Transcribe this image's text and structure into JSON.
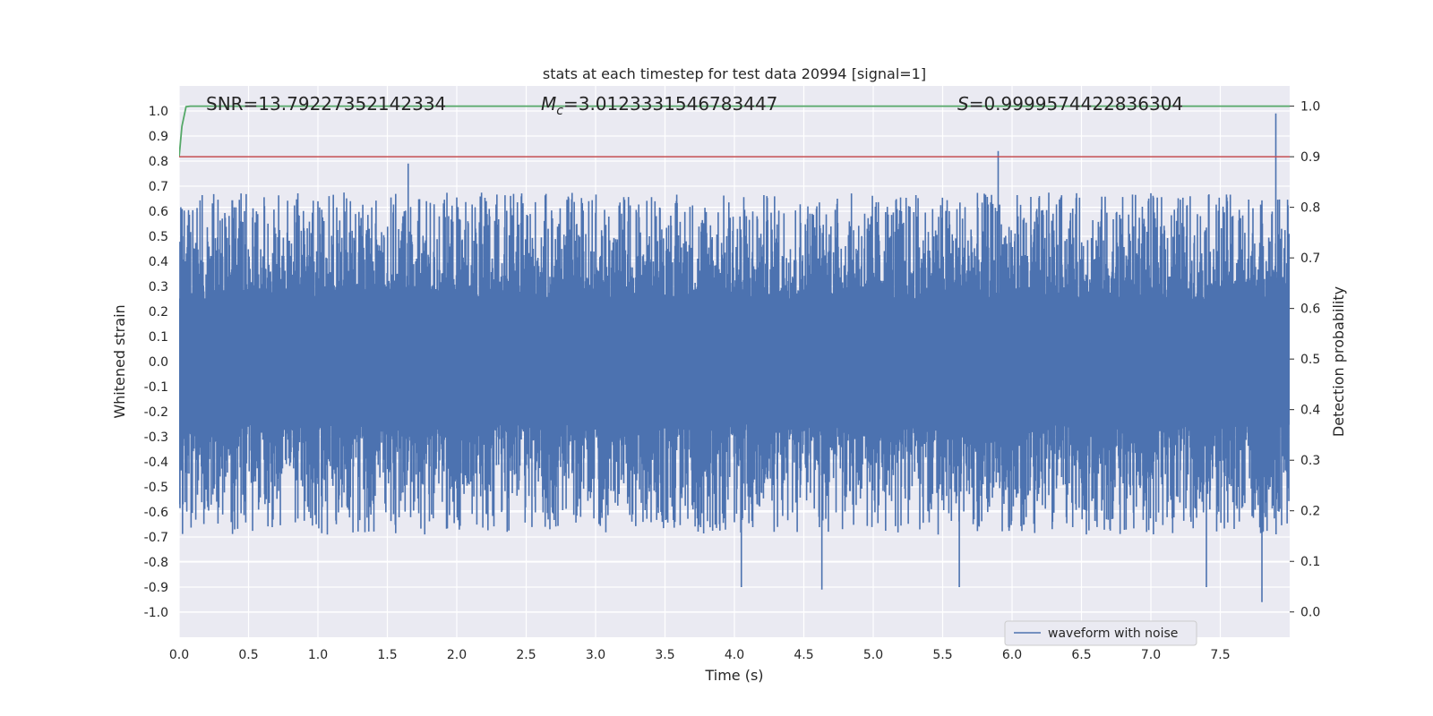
{
  "chart_data": {
    "type": "line",
    "title": "stats at each timestep for test data 20994 [signal=1]",
    "xlabel": "Time (s)",
    "ylabel_left": "Whitened strain",
    "ylabel_right": "Detection probability",
    "xlim": [
      0.0,
      8.0
    ],
    "ylim_left": [
      -1.1,
      1.1
    ],
    "ylim_right": [
      -0.05,
      1.04
    ],
    "xticks": [
      "0.0",
      "0.5",
      "1.0",
      "1.5",
      "2.0",
      "2.5",
      "3.0",
      "3.5",
      "4.0",
      "4.5",
      "5.0",
      "5.5",
      "6.0",
      "6.5",
      "7.0",
      "7.5"
    ],
    "xtick_values": [
      0.0,
      0.5,
      1.0,
      1.5,
      2.0,
      2.5,
      3.0,
      3.5,
      4.0,
      4.5,
      5.0,
      5.5,
      6.0,
      6.5,
      7.0,
      7.5
    ],
    "yticks_left": [
      "1.0",
      "0.9",
      "0.8",
      "0.7",
      "0.6",
      "0.5",
      "0.4",
      "0.3",
      "0.2",
      "0.1",
      "0.0",
      "-0.1",
      "-0.2",
      "-0.3",
      "-0.4",
      "-0.5",
      "-0.6",
      "-0.7",
      "-0.8",
      "-0.9",
      "-1.0"
    ],
    "ytick_values_left": [
      1.0,
      0.9,
      0.8,
      0.7,
      0.6,
      0.5,
      0.4,
      0.3,
      0.2,
      0.1,
      0.0,
      -0.1,
      -0.2,
      -0.3,
      -0.4,
      -0.5,
      -0.6,
      -0.7,
      -0.8,
      -0.9,
      -1.0
    ],
    "yticks_right": [
      "1.0",
      "0.9",
      "0.8",
      "0.7",
      "0.6",
      "0.5",
      "0.4",
      "0.3",
      "0.2",
      "0.1",
      "0.0"
    ],
    "ytick_values_right": [
      1.0,
      0.9,
      0.8,
      0.7,
      0.6,
      0.5,
      0.4,
      0.3,
      0.2,
      0.1,
      0.0
    ],
    "annotations": {
      "snr": "SNR=13.79227352142334",
      "mc_symbol": "M",
      "mc_sub": "c",
      "mc_value": "=3.0123331546783447",
      "s_symbol": "S",
      "s_value": "=0.9999574422836304"
    },
    "series": [
      {
        "name": "waveform with noise",
        "axis": "left",
        "color": "#4c72b0",
        "description": "noisy whitened strain, dense band roughly -0.55 to 0.55 with spikes",
        "upper_envelope_range": [
          0.25,
          0.84
        ],
        "lower_envelope_range": [
          -0.25,
          -0.96
        ],
        "spikes": [
          [
            1.65,
            0.79
          ],
          [
            5.9,
            0.84
          ],
          [
            7.9,
            0.99
          ],
          [
            4.05,
            -0.9
          ],
          [
            4.63,
            -0.91
          ],
          [
            5.62,
            -0.9
          ],
          [
            7.4,
            -0.9
          ],
          [
            7.8,
            -0.96
          ]
        ]
      },
      {
        "name": "detection probability",
        "axis": "right",
        "color": "#55a868",
        "x": [
          0.0,
          0.02,
          0.05,
          0.08,
          8.0
        ],
        "values": [
          0.9,
          0.96,
          0.999,
          1.0,
          1.0
        ]
      },
      {
        "name": "threshold",
        "axis": "right",
        "color": "#c44e52",
        "x": [
          0.0,
          8.0
        ],
        "values": [
          0.9,
          0.9
        ]
      }
    ],
    "legend": {
      "labels": [
        "waveform with noise"
      ],
      "placement": "lower-right"
    },
    "grid": true,
    "colors": {
      "axes_bg": "#eaeaf2",
      "grid": "#ffffff",
      "waveform": "#4c72b0",
      "probability": "#55a868",
      "threshold": "#c44e52"
    }
  }
}
